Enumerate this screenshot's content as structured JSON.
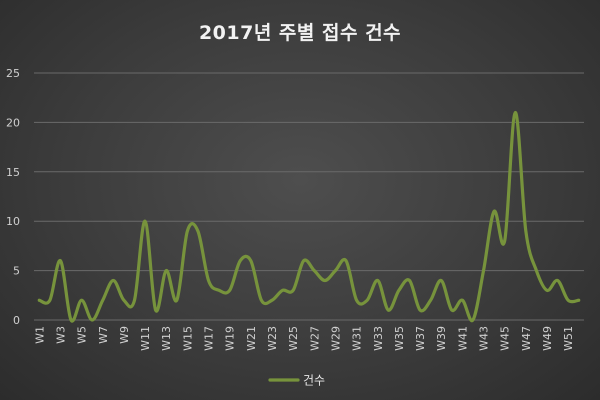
{
  "chart_data": {
    "type": "line",
    "title": "2017년 주별 접수 건수",
    "xlabel": "",
    "ylabel": "",
    "ylim": [
      0,
      25
    ],
    "yticks": [
      0,
      5,
      10,
      15,
      20,
      25
    ],
    "grid": true,
    "legend_position": "bottom",
    "line_color": "#77933c",
    "categories": [
      "W1",
      "W2",
      "W3",
      "W4",
      "W5",
      "W6",
      "W7",
      "W8",
      "W9",
      "W10",
      "W11",
      "W12",
      "W13",
      "W14",
      "W15",
      "W16",
      "W17",
      "W18",
      "W19",
      "W20",
      "W21",
      "W22",
      "W23",
      "W24",
      "W25",
      "W26",
      "W27",
      "W28",
      "W29",
      "W30",
      "W31",
      "W32",
      "W33",
      "W34",
      "W35",
      "W36",
      "W37",
      "W38",
      "W39",
      "W40",
      "W41",
      "W42",
      "W43",
      "W44",
      "W45",
      "W46",
      "W47",
      "W48",
      "W49",
      "W50",
      "W51",
      "W52"
    ],
    "tick_labels": [
      "W1",
      "W3",
      "W5",
      "W7",
      "W9",
      "W11",
      "W13",
      "W15",
      "W17",
      "W19",
      "W21",
      "W23",
      "W25",
      "W27",
      "W29",
      "W31",
      "W33",
      "W35",
      "W37",
      "W39",
      "W41",
      "W43",
      "W45",
      "W47",
      "W49",
      "W51"
    ],
    "series": [
      {
        "name": "건수",
        "values": [
          2,
          2,
          6,
          0,
          2,
          0,
          2,
          4,
          2,
          2,
          10,
          1,
          5,
          2,
          9,
          9,
          4,
          3,
          3,
          6,
          6,
          2,
          2,
          3,
          3,
          6,
          5,
          4,
          5,
          6,
          2,
          2,
          4,
          1,
          3,
          4,
          1,
          2,
          4,
          1,
          2,
          0,
          5,
          11,
          8,
          21,
          9,
          5,
          3,
          4,
          2,
          2
        ]
      }
    ]
  }
}
